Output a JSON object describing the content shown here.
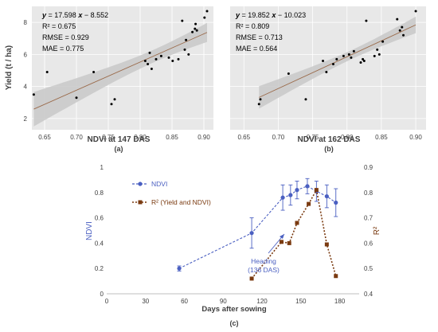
{
  "colors": {
    "ndvi": "#4a5fc1",
    "r2": "#7a3a10",
    "fit_line": "#9a6a4a",
    "ci_band": "#c8c8c8",
    "panel_bg": "#e8e8e8",
    "grid": "#ffffff",
    "points": "#000000",
    "annotation": "#4a5fc1"
  },
  "chart_data": [
    {
      "panel": "(a)",
      "type": "scatter",
      "xlabel": "NDVI at 147 DAS",
      "ylabel": "Yield (t / ha)",
      "xlim": [
        0.63,
        0.915
      ],
      "ylim": [
        1.3,
        9.0
      ],
      "xticks": [
        "0.65",
        "0.70",
        "0.75",
        "0.80",
        "0.85",
        "0.90"
      ],
      "xtick_values": [
        0.65,
        0.7,
        0.75,
        0.8,
        0.85,
        0.9
      ],
      "yticks": [
        "2",
        "4",
        "6",
        "8"
      ],
      "ytick_values": [
        2,
        4,
        6,
        8
      ],
      "grid": true,
      "fit": {
        "slope": 17.598,
        "intercept": -8.552,
        "x_range": [
          0.633,
          0.905
        ]
      },
      "stats": {
        "eq_y": "y",
        "eq_rest": " = 17.598 ",
        "eq_x": "x",
        "eq_tail": " − 8.552",
        "r2": "R² = 0.675",
        "rmse": "RMSE = 0.929",
        "mae": "MAE = 0.775"
      },
      "x": [
        0.633,
        0.654,
        0.7,
        0.727,
        0.755,
        0.76,
        0.808,
        0.812,
        0.815,
        0.818,
        0.825,
        0.833,
        0.845,
        0.851,
        0.86,
        0.866,
        0.87,
        0.872,
        0.876,
        0.882,
        0.886,
        0.887,
        0.889,
        0.901,
        0.905
      ],
      "y": [
        3.5,
        4.9,
        3.3,
        4.9,
        2.9,
        3.2,
        5.6,
        5.4,
        6.1,
        5.1,
        5.7,
        5.9,
        5.8,
        5.6,
        5.7,
        8.1,
        6.3,
        6.9,
        6.0,
        7.4,
        7.6,
        7.9,
        7.5,
        8.3,
        8.7
      ]
    },
    {
      "panel": "(b)",
      "type": "scatter",
      "xlabel": "NDVI at 162 DAS",
      "ylabel": "",
      "xlim": [
        0.63,
        0.915
      ],
      "ylim": [
        1.3,
        9.0
      ],
      "xticks": [
        "0.65",
        "0.70",
        "0.75",
        "0.80",
        "0.85",
        "0.90"
      ],
      "xtick_values": [
        0.65,
        0.7,
        0.75,
        0.8,
        0.85,
        0.9
      ],
      "yticks": [
        "2",
        "4",
        "6",
        "8"
      ],
      "ytick_values": [
        2,
        4,
        6,
        8
      ],
      "grid": true,
      "fit": {
        "slope": 19.852,
        "intercept": -10.023,
        "x_range": [
          0.672,
          0.9
        ]
      },
      "stats": {
        "eq_y": "y",
        "eq_rest": " = 19.852 ",
        "eq_x": "x",
        "eq_tail": " − 10.023",
        "r2": "R² = 0.809",
        "rmse": "RMSE = 0.713",
        "mae": "MAE = 0.564"
      },
      "x": [
        0.672,
        0.674,
        0.715,
        0.74,
        0.765,
        0.77,
        0.78,
        0.785,
        0.795,
        0.803,
        0.806,
        0.81,
        0.82,
        0.823,
        0.825,
        0.828,
        0.84,
        0.844,
        0.847,
        0.852,
        0.873,
        0.877,
        0.88,
        0.882,
        0.9
      ],
      "y": [
        2.9,
        3.2,
        4.8,
        3.2,
        5.6,
        4.9,
        5.4,
        5.7,
        5.9,
        6.0,
        5.8,
        6.2,
        5.5,
        5.7,
        5.6,
        8.1,
        5.9,
        6.3,
        6.0,
        6.8,
        8.2,
        7.5,
        7.7,
        7.2,
        8.7
      ]
    },
    {
      "panel": "(c)",
      "type": "line",
      "xlabel": "Days after sowing",
      "ylabel": "NDVI",
      "y2label": "R²",
      "xlim": [
        0,
        195
      ],
      "ylim": [
        0,
        1
      ],
      "y2lim": [
        0.4,
        0.9
      ],
      "xticks": [
        "0",
        "30",
        "60",
        "90",
        "120",
        "150",
        "180"
      ],
      "xtick_values": [
        0,
        30,
        60,
        90,
        120,
        150,
        180
      ],
      "yticks": [
        "0",
        "0.2",
        "0.4",
        "0.6",
        "0.8",
        "1"
      ],
      "ytick_values": [
        0,
        0.2,
        0.4,
        0.6,
        0.8,
        1
      ],
      "y2ticks": [
        "0.4",
        "0.5",
        "0.6",
        "0.7",
        "0.8",
        "0.9"
      ],
      "y2tick_values": [
        0.4,
        0.5,
        0.6,
        0.7,
        0.8,
        0.9
      ],
      "legend_position": "top-left",
      "series": [
        {
          "name": "NDVI",
          "axis": "left",
          "x": [
            56,
            112,
            136,
            142,
            147,
            155,
            162,
            170,
            177
          ],
          "y": [
            0.2,
            0.48,
            0.76,
            0.78,
            0.82,
            0.85,
            0.81,
            0.77,
            0.72
          ],
          "err": [
            0.02,
            0.12,
            0.1,
            0.08,
            0.07,
            0.06,
            0.08,
            0.09,
            0.11
          ]
        },
        {
          "name": "R² (Yield and NDVI)",
          "axis": "right",
          "x": [
            112,
            135,
            141,
            147,
            156,
            162,
            170,
            177
          ],
          "y": [
            0.46,
            0.605,
            0.6,
            0.68,
            0.755,
            0.81,
            0.595,
            0.47
          ]
        }
      ],
      "annotation": {
        "line1": "Heading",
        "line2": "(136 DAS)"
      }
    }
  ],
  "captions": {
    "a": "(a)",
    "b": "(b)",
    "c": "(c)"
  }
}
